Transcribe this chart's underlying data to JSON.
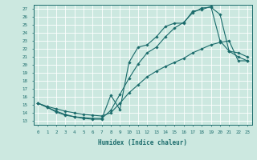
{
  "xlabel": "Humidex (Indice chaleur)",
  "bg_color": "#cce8e0",
  "grid_color": "#ffffff",
  "line_color": "#1a6b6b",
  "xlim": [
    -0.5,
    23.5
  ],
  "ylim": [
    12.5,
    27.5
  ],
  "xticks": [
    0,
    1,
    2,
    3,
    4,
    5,
    6,
    7,
    8,
    9,
    10,
    11,
    12,
    13,
    14,
    15,
    16,
    17,
    18,
    19,
    20,
    21,
    22,
    23
  ],
  "yticks": [
    13,
    14,
    15,
    16,
    17,
    18,
    19,
    20,
    21,
    22,
    23,
    24,
    25,
    26,
    27
  ],
  "line1_x": [
    0,
    1,
    2,
    3,
    4,
    5,
    6,
    7,
    8,
    9,
    10,
    11,
    12,
    13,
    14,
    15,
    16,
    17,
    18,
    19,
    20,
    21,
    22,
    23
  ],
  "line1_y": [
    15.2,
    14.7,
    14.1,
    13.7,
    13.5,
    13.3,
    13.2,
    13.2,
    16.2,
    14.4,
    20.3,
    22.2,
    22.5,
    23.5,
    24.8,
    25.2,
    25.2,
    26.7,
    26.9,
    27.3,
    23.0,
    21.7,
    21.0,
    20.5
  ],
  "line2_x": [
    0,
    1,
    2,
    3,
    4,
    5,
    6,
    7,
    8,
    9,
    10,
    11,
    12,
    13,
    14,
    15,
    16,
    17,
    18,
    19,
    20,
    21,
    22,
    23
  ],
  "line2_y": [
    15.2,
    14.7,
    14.2,
    13.8,
    13.5,
    13.4,
    13.3,
    13.3,
    14.3,
    16.3,
    18.3,
    20.1,
    21.5,
    22.2,
    23.5,
    24.6,
    25.3,
    26.5,
    27.1,
    27.2,
    26.3,
    21.7,
    21.5,
    21.0
  ],
  "line3_x": [
    0,
    1,
    2,
    3,
    4,
    5,
    6,
    7,
    8,
    9,
    10,
    11,
    12,
    13,
    14,
    15,
    16,
    17,
    18,
    19,
    20,
    21,
    22,
    23
  ],
  "line3_y": [
    15.2,
    14.8,
    14.5,
    14.2,
    14.0,
    13.8,
    13.7,
    13.6,
    14.0,
    15.2,
    16.5,
    17.5,
    18.5,
    19.2,
    19.8,
    20.3,
    20.8,
    21.5,
    22.0,
    22.5,
    22.8,
    23.0,
    20.5,
    20.5
  ]
}
